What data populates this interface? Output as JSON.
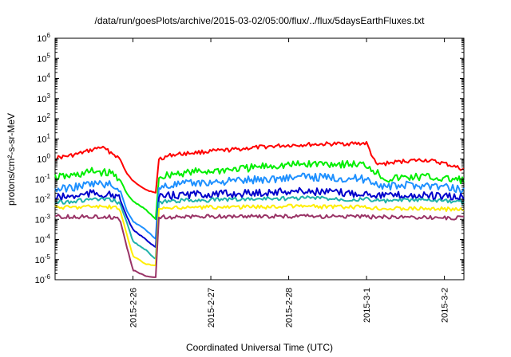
{
  "chart_data": {
    "type": "line",
    "title": "/data/run/goesPlots/archive/2015-03-02/05:00/flux/../flux/5daysEarthFluxes.txt",
    "xlabel": "Coordinated Universal Time (UTC)",
    "ylabel": "protons/cm²-s-sr-MeV",
    "y_scale": "log",
    "ylim_exp": [
      -6,
      6
    ],
    "y_tick_exponents": [
      -6,
      -5,
      -4,
      -3,
      -2,
      -1,
      0,
      1,
      2,
      3,
      4,
      5,
      6
    ],
    "xlim": [
      "2015-02-25 00:00",
      "2015-03-02 06:00"
    ],
    "x_ticks": [
      {
        "date": "2015-02-26 00:00",
        "label": "2015-2-26"
      },
      {
        "date": "2015-02-27 00:00",
        "label": "2015-2-27"
      },
      {
        "date": "2015-02-28 00:00",
        "label": "2015-2-28"
      },
      {
        "date": "2015-03-01 00:00",
        "label": "2015-3-1"
      },
      {
        "date": "2015-03-02 00:00",
        "label": "2015-3-2"
      }
    ],
    "grid": false,
    "legend": "none",
    "series": [
      {
        "color": "#ff0000",
        "x": [
          "2015-02-25 00:00",
          "2015-02-25 06:00",
          "2015-02-25 12:00",
          "2015-02-25 14:00",
          "2015-02-25 18:00",
          "2015-02-25 20:00",
          "2015-02-25 22:00",
          "2015-02-26 00:00",
          "2015-02-26 04:00",
          "2015-02-26 07:00",
          "2015-02-26 08:00",
          "2015-02-26 12:00",
          "2015-02-26 18:00",
          "2015-02-27 00:00",
          "2015-02-27 06:00",
          "2015-02-27 12:00",
          "2015-02-27 18:00",
          "2015-02-28 00:00",
          "2015-02-28 06:00",
          "2015-02-28 12:00",
          "2015-02-28 18:00",
          "2015-03-01 00:00",
          "2015-03-01 03:00",
          "2015-03-01 06:00",
          "2015-03-01 12:00",
          "2015-03-01 18:00",
          "2015-03-02 00:00",
          "2015-03-02 06:00"
        ],
        "y": [
          1.1,
          1.6,
          3.0,
          4.0,
          1.8,
          1.0,
          0.2,
          0.08,
          0.03,
          0.02,
          1.0,
          1.6,
          2.0,
          2.4,
          2.8,
          3.5,
          4.2,
          4.8,
          5.2,
          5.5,
          5.8,
          6.0,
          0.5,
          0.6,
          0.8,
          0.9,
          0.6,
          0.3
        ]
      },
      {
        "color": "#00ee00",
        "x": [
          "2015-02-25 00:00",
          "2015-02-25 06:00",
          "2015-02-25 12:00",
          "2015-02-25 18:00",
          "2015-02-25 20:00",
          "2015-02-25 22:00",
          "2015-02-26 00:00",
          "2015-02-26 04:00",
          "2015-02-26 07:00",
          "2015-02-26 08:00",
          "2015-02-26 12:00",
          "2015-02-26 18:00",
          "2015-02-27 00:00",
          "2015-02-27 06:00",
          "2015-02-27 12:00",
          "2015-02-27 18:00",
          "2015-02-28 00:00",
          "2015-02-28 06:00",
          "2015-02-28 12:00",
          "2015-02-28 18:00",
          "2015-03-01 00:00",
          "2015-03-01 06:00",
          "2015-03-01 12:00",
          "2015-03-01 18:00",
          "2015-03-02 00:00",
          "2015-03-02 06:00"
        ],
        "y": [
          0.12,
          0.15,
          0.25,
          0.18,
          0.1,
          0.02,
          0.008,
          0.003,
          0.001,
          0.12,
          0.18,
          0.22,
          0.25,
          0.3,
          0.35,
          0.45,
          0.5,
          0.55,
          0.6,
          0.55,
          0.5,
          0.1,
          0.12,
          0.13,
          0.1,
          0.09
        ]
      },
      {
        "color": "#1e90ff",
        "x": [
          "2015-02-25 00:00",
          "2015-02-25 06:00",
          "2015-02-25 12:00",
          "2015-02-25 18:00",
          "2015-02-25 20:00",
          "2015-02-25 22:00",
          "2015-02-26 00:00",
          "2015-02-26 04:00",
          "2015-02-26 07:00",
          "2015-02-26 08:00",
          "2015-02-26 12:00",
          "2015-02-26 18:00",
          "2015-02-27 00:00",
          "2015-02-27 06:00",
          "2015-02-27 12:00",
          "2015-02-27 18:00",
          "2015-02-28 00:00",
          "2015-02-28 06:00",
          "2015-02-28 12:00",
          "2015-02-28 18:00",
          "2015-03-01 00:00",
          "2015-03-01 06:00",
          "2015-03-01 12:00",
          "2015-03-01 18:00",
          "2015-03-02 00:00",
          "2015-03-02 06:00"
        ],
        "y": [
          0.03,
          0.04,
          0.06,
          0.05,
          0.03,
          0.003,
          0.0008,
          0.0003,
          0.0001,
          0.04,
          0.05,
          0.06,
          0.07,
          0.08,
          0.09,
          0.1,
          0.12,
          0.13,
          0.12,
          0.11,
          0.1,
          0.04,
          0.05,
          0.05,
          0.04,
          0.03
        ]
      },
      {
        "color": "#0000cc",
        "x": [
          "2015-02-25 00:00",
          "2015-02-25 06:00",
          "2015-02-25 12:00",
          "2015-02-25 18:00",
          "2015-02-25 20:00",
          "2015-02-25 22:00",
          "2015-02-26 00:00",
          "2015-02-26 04:00",
          "2015-02-26 07:00",
          "2015-02-26 08:00",
          "2015-02-26 12:00",
          "2015-02-26 18:00",
          "2015-02-27 00:00",
          "2015-02-27 06:00",
          "2015-02-27 12:00",
          "2015-02-27 18:00",
          "2015-02-28 00:00",
          "2015-02-28 06:00",
          "2015-02-28 12:00",
          "2015-02-28 18:00",
          "2015-03-01 00:00",
          "2015-03-01 06:00",
          "2015-03-01 12:00",
          "2015-03-01 18:00",
          "2015-03-02 00:00",
          "2015-03-02 06:00"
        ],
        "y": [
          0.012,
          0.014,
          0.02,
          0.015,
          0.01,
          0.0015,
          0.0003,
          0.0001,
          4e-05,
          0.012,
          0.015,
          0.017,
          0.018,
          0.018,
          0.02,
          0.022,
          0.025,
          0.025,
          0.022,
          0.02,
          0.02,
          0.015,
          0.015,
          0.015,
          0.013,
          0.012
        ]
      },
      {
        "color": "#20b2aa",
        "x": [
          "2015-02-25 00:00",
          "2015-02-25 06:00",
          "2015-02-25 12:00",
          "2015-02-25 18:00",
          "2015-02-25 20:00",
          "2015-02-25 22:00",
          "2015-02-26 00:00",
          "2015-02-26 04:00",
          "2015-02-26 07:00",
          "2015-02-26 08:00",
          "2015-02-26 12:00",
          "2015-02-26 18:00",
          "2015-02-27 00:00",
          "2015-02-27 06:00",
          "2015-02-27 12:00",
          "2015-02-27 18:00",
          "2015-02-28 00:00",
          "2015-02-28 06:00",
          "2015-02-28 12:00",
          "2015-02-28 18:00",
          "2015-03-01 00:00",
          "2015-03-01 06:00",
          "2015-03-01 12:00",
          "2015-03-01 18:00",
          "2015-03-02 00:00",
          "2015-03-02 06:00"
        ],
        "y": [
          0.007,
          0.008,
          0.01,
          0.009,
          0.006,
          0.0008,
          8e-05,
          3e-05,
          1e-05,
          0.007,
          0.008,
          0.009,
          0.009,
          0.01,
          0.01,
          0.011,
          0.011,
          0.012,
          0.011,
          0.01,
          0.01,
          0.008,
          0.009,
          0.009,
          0.008,
          0.007
        ]
      },
      {
        "color": "#ffee00",
        "x": [
          "2015-02-25 00:00",
          "2015-02-25 06:00",
          "2015-02-25 12:00",
          "2015-02-25 18:00",
          "2015-02-25 20:00",
          "2015-02-25 22:00",
          "2015-02-26 00:00",
          "2015-02-26 04:00",
          "2015-02-26 07:00",
          "2015-02-26 08:00",
          "2015-02-26 12:00",
          "2015-02-26 18:00",
          "2015-02-27 00:00",
          "2015-02-27 06:00",
          "2015-02-27 12:00",
          "2015-02-27 18:00",
          "2015-02-28 00:00",
          "2015-02-28 06:00",
          "2015-02-28 12:00",
          "2015-02-28 18:00",
          "2015-03-01 00:00",
          "2015-03-01 06:00",
          "2015-03-01 12:00",
          "2015-03-01 18:00",
          "2015-03-02 00:00",
          "2015-03-02 06:00"
        ],
        "y": [
          0.004,
          0.004,
          0.0045,
          0.004,
          0.003,
          0.0002,
          1.5e-05,
          6e-06,
          5e-06,
          0.0035,
          0.0035,
          0.004,
          0.004,
          0.004,
          0.0042,
          0.0042,
          0.0045,
          0.0045,
          0.0042,
          0.004,
          0.004,
          0.0035,
          0.0035,
          0.0035,
          0.0032,
          0.003
        ]
      },
      {
        "color": "#993366",
        "x": [
          "2015-02-25 00:00",
          "2015-02-25 06:00",
          "2015-02-25 12:00",
          "2015-02-25 18:00",
          "2015-02-25 20:00",
          "2015-02-25 22:00",
          "2015-02-26 00:00",
          "2015-02-26 04:00",
          "2015-02-26 07:00",
          "2015-02-26 08:00",
          "2015-02-26 12:00",
          "2015-02-26 18:00",
          "2015-02-27 00:00",
          "2015-02-27 06:00",
          "2015-02-27 12:00",
          "2015-02-27 18:00",
          "2015-02-28 00:00",
          "2015-02-28 06:00",
          "2015-02-28 12:00",
          "2015-02-28 18:00",
          "2015-03-01 00:00",
          "2015-03-01 06:00",
          "2015-03-01 12:00",
          "2015-03-01 18:00",
          "2015-03-02 00:00",
          "2015-03-02 06:00"
        ],
        "y": [
          0.0014,
          0.0013,
          0.0014,
          0.0013,
          0.001,
          5e-05,
          3e-06,
          1.5e-06,
          1.3e-06,
          0.0013,
          0.0013,
          0.0013,
          0.0014,
          0.0014,
          0.0014,
          0.0014,
          0.0014,
          0.0014,
          0.0014,
          0.0014,
          0.0013,
          0.0013,
          0.0013,
          0.0013,
          0.0012,
          0.0012
        ]
      }
    ]
  }
}
